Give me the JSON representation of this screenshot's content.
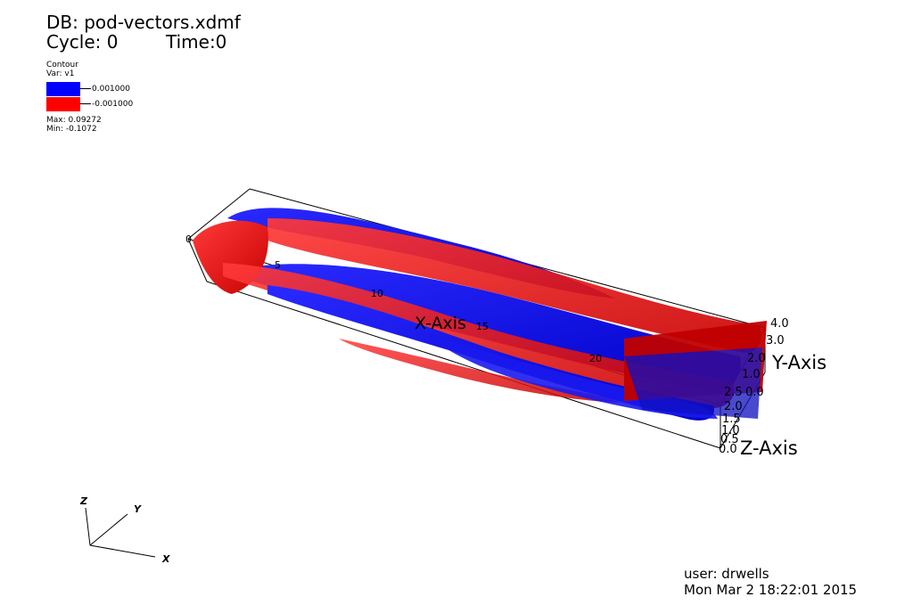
{
  "header": {
    "db_line": "DB: pod-vectors.xdmf",
    "cycle_line": "Cycle: 0",
    "time_line": "Time:0"
  },
  "legend": {
    "plot_type": "Contour",
    "var_line": "Var: v1",
    "levels": [
      {
        "label": "0.001000",
        "color": "#0000ff"
      },
      {
        "label": "-0.001000",
        "color": "#ff0000"
      }
    ],
    "max_line": "Max:  0.09272",
    "min_line": "Min: -0.1072"
  },
  "axes": {
    "x_title": "X-Axis",
    "y_title": "Y-Axis",
    "z_title": "Z-Axis",
    "x_ticks": [
      "0",
      "5",
      "10",
      "15",
      "20"
    ],
    "y_ticks": [
      "4.0",
      "3.0",
      "2.0",
      "1.0",
      "0.0"
    ],
    "z_ticks": [
      "2.5",
      "2.0",
      "1.5",
      "1.0",
      "0.5",
      "0.0"
    ]
  },
  "triad": {
    "x": "X",
    "y": "Y",
    "z": "Z"
  },
  "footer": {
    "user_line": "user: drwells",
    "date_line": "Mon Mar  2 18:22:01 2015"
  },
  "colors": {
    "positive": "#0000ff",
    "negative": "#ff0000",
    "background": "#ffffff"
  }
}
